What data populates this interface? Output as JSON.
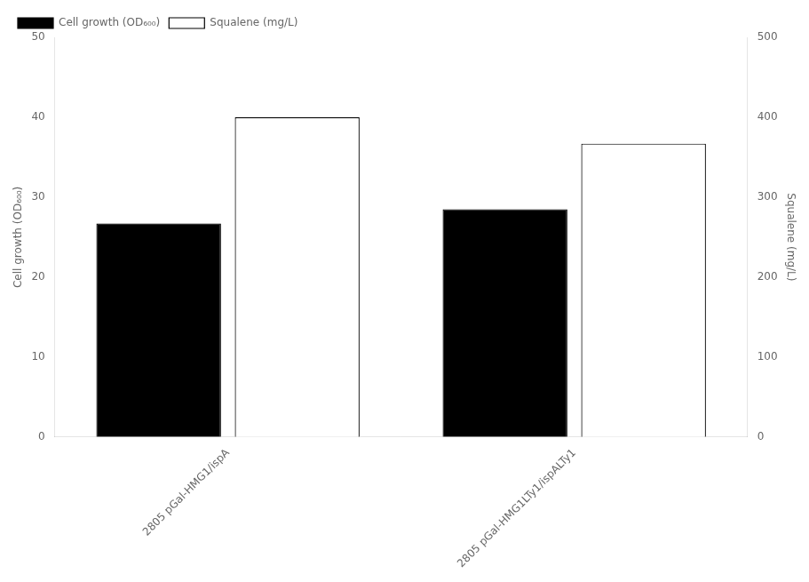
{
  "chart_data": {
    "type": "bar",
    "categories": [
      "2805 pGal-HMG1/ispA",
      "2805 pGal-HMG1LTy1/ispALTy1"
    ],
    "series": [
      {
        "name": "Cell growth (OD₆₀₀)",
        "color": "#000000",
        "values": [
          26.7,
          28.5
        ]
      },
      {
        "name": "Squalene (mg/L)",
        "color": "#ffffff",
        "values": [
          400.0,
          367.0
        ],
        "axis": "y2"
      }
    ],
    "y_label": "Cell growth (OD₆₀₀)",
    "y2_label": "Squalene (mg/L)",
    "ylim": [
      0,
      50
    ],
    "yticks": [
      0,
      10,
      20,
      30,
      40,
      50
    ],
    "y2lim": [
      0,
      500
    ],
    "y2ticks": [
      0,
      100,
      200,
      300,
      400,
      500
    ],
    "grid": false,
    "legend": "upper left"
  }
}
